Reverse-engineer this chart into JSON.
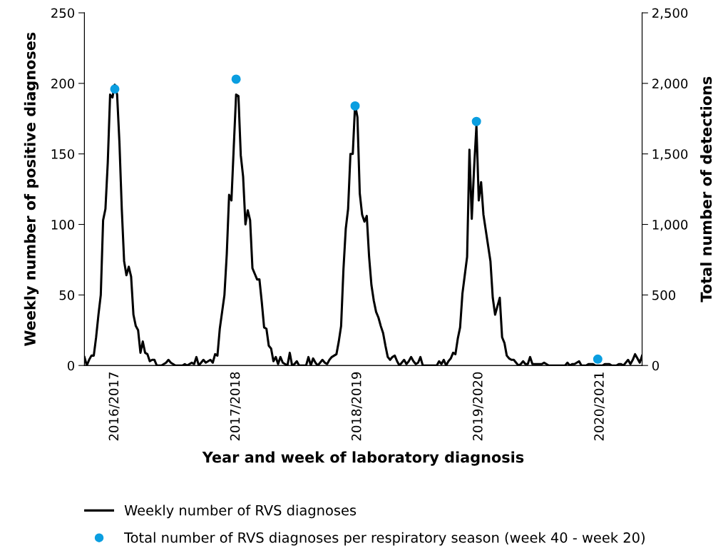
{
  "chart_data": {
    "type": "line",
    "xlabel": "Year and week of laboratory diagnosis",
    "ylabel": "Weekly number of positive diagnoses",
    "y2label": "Total number of detections",
    "categories": [
      null,
      null,
      null,
      null,
      null,
      null,
      null,
      null,
      null,
      null,
      null,
      null,
      null,
      "2016/2017",
      null,
      null,
      null,
      null,
      null,
      null,
      null,
      null,
      null,
      null,
      null,
      null,
      null,
      null,
      null,
      null,
      null,
      null,
      null,
      null,
      null,
      null,
      null,
      null,
      null,
      null,
      null,
      null,
      null,
      null,
      null,
      null,
      null,
      null,
      null,
      null,
      null,
      null,
      null,
      null,
      null,
      null,
      null,
      null,
      null,
      null,
      null,
      null,
      null,
      null,
      null,
      "2017/2018",
      null,
      null,
      null,
      null,
      null,
      null,
      null,
      null,
      null,
      null,
      null,
      null,
      null,
      null,
      null,
      null,
      null,
      null,
      null,
      null,
      null,
      null,
      null,
      null,
      null,
      null,
      null,
      null,
      null,
      null,
      null,
      null,
      null,
      null,
      null,
      null,
      null,
      null,
      null,
      null,
      null,
      null,
      null,
      null,
      null,
      null,
      null,
      null,
      null,
      null,
      null,
      "2018/2019",
      null,
      null,
      null,
      null,
      null,
      null,
      null,
      null,
      null,
      null,
      null,
      null,
      null,
      null,
      null,
      null,
      null,
      null,
      null,
      null,
      null,
      null,
      null,
      null,
      null,
      null,
      null,
      null,
      null,
      null,
      null,
      null,
      null,
      null,
      null,
      null,
      null,
      null,
      null,
      null,
      null,
      null,
      null,
      null,
      null,
      null,
      null,
      null,
      null,
      null,
      null,
      "2019/2020",
      null,
      null,
      null,
      null,
      null,
      null,
      null,
      null,
      null,
      null,
      null,
      null,
      null,
      null,
      null,
      null,
      null,
      null,
      null,
      null,
      null,
      null,
      null,
      null,
      null,
      null,
      null,
      null,
      null,
      null,
      null,
      null,
      null,
      null,
      null,
      null,
      null,
      null,
      null,
      null,
      null,
      null,
      null,
      null,
      null,
      null,
      null,
      null,
      null,
      null,
      null,
      "2020/2021",
      null,
      null,
      null,
      null,
      null,
      null,
      null,
      null,
      null,
      null,
      null,
      null,
      null,
      null,
      null,
      null,
      null,
      null
    ],
    "ylim": [
      0,
      250
    ],
    "yticks": [
      0,
      50,
      100,
      150,
      200,
      250
    ],
    "y2lim": [
      0,
      2500
    ],
    "y2ticks": [
      0,
      500,
      {
        "value": 1000,
        "label": "1,000"
      },
      {
        "value": 1500,
        "label": "1,500"
      },
      {
        "value": 2000,
        "label": "2,000"
      },
      {
        "value": 2500,
        "label": "2,500"
      }
    ],
    "grid": false,
    "legend": "bottom",
    "series": [
      {
        "name": "Weekly number of RVS diagnoses",
        "color": "#000000",
        "marker": "none",
        "values": [
          6,
          0,
          4,
          7,
          7,
          20,
          36,
          50,
          103,
          111,
          144,
          192,
          190,
          199,
          192,
          158,
          111,
          74,
          64,
          70,
          63,
          36,
          28,
          25,
          9,
          17,
          9,
          8,
          3,
          4,
          4,
          0,
          0,
          0,
          1,
          2,
          4,
          2,
          1,
          0,
          0,
          0,
          0,
          1,
          0,
          1,
          2,
          1,
          6,
          0,
          2,
          4,
          2,
          3,
          4,
          2,
          8,
          7,
          26,
          38,
          50,
          79,
          121,
          117,
          155,
          192,
          191,
          149,
          134,
          100,
          110,
          103,
          69,
          65,
          61,
          61,
          45,
          27,
          26,
          14,
          12,
          3,
          6,
          1,
          6,
          2,
          1,
          0,
          9,
          0,
          1,
          3,
          0,
          0,
          0,
          0,
          6,
          0,
          5,
          2,
          0,
          2,
          4,
          2,
          1,
          4,
          6,
          7,
          8,
          17,
          28,
          68,
          97,
          111,
          150,
          150,
          185,
          176,
          122,
          107,
          102,
          106,
          77,
          57,
          46,
          38,
          34,
          28,
          23,
          14,
          6,
          4,
          6,
          7,
          3,
          0,
          2,
          4,
          1,
          3,
          6,
          3,
          1,
          2,
          6,
          0,
          0,
          0,
          0,
          0,
          0,
          0,
          3,
          1,
          4,
          0,
          3,
          5,
          9,
          8,
          19,
          27,
          51,
          64,
          77,
          153,
          104,
          140,
          170,
          117,
          130,
          107,
          96,
          85,
          74,
          48,
          36,
          42,
          48,
          20,
          16,
          7,
          5,
          4,
          4,
          2,
          0,
          1,
          3,
          1,
          1,
          6,
          1,
          1,
          1,
          1,
          1,
          2,
          1,
          0,
          0,
          0,
          0,
          0,
          0,
          0,
          0,
          2,
          0,
          1,
          1,
          2,
          3,
          0,
          0,
          0,
          1,
          1,
          1,
          0,
          0,
          0,
          0,
          1,
          1,
          1,
          0,
          0,
          0,
          1,
          1,
          0,
          2,
          4,
          1,
          4,
          8,
          5,
          2,
          7
        ]
      },
      {
        "name": "Total number of RVS diagnoses per respiratory season (week 40 - week 20)",
        "type": "scatter",
        "axis": "y2",
        "color": "#0a9ee0",
        "marker": "circle",
        "values": [
          null,
          null,
          null,
          null,
          null,
          null,
          null,
          null,
          null,
          null,
          null,
          null,
          null,
          1960,
          null,
          null,
          null,
          null,
          null,
          null,
          null,
          null,
          null,
          null,
          null,
          null,
          null,
          null,
          null,
          null,
          null,
          null,
          null,
          null,
          null,
          null,
          null,
          null,
          null,
          null,
          null,
          null,
          null,
          null,
          null,
          null,
          null,
          null,
          null,
          null,
          null,
          null,
          null,
          null,
          null,
          null,
          null,
          null,
          null,
          null,
          null,
          null,
          null,
          null,
          null,
          2030,
          null,
          null,
          null,
          null,
          null,
          null,
          null,
          null,
          null,
          null,
          null,
          null,
          null,
          null,
          null,
          null,
          null,
          null,
          null,
          null,
          null,
          null,
          null,
          null,
          null,
          null,
          null,
          null,
          null,
          null,
          null,
          null,
          null,
          null,
          null,
          null,
          null,
          null,
          null,
          null,
          null,
          null,
          null,
          null,
          null,
          null,
          null,
          null,
          null,
          null,
          1840,
          null,
          null,
          null,
          null,
          null,
          null,
          null,
          null,
          null,
          null,
          null,
          null,
          null,
          null,
          null,
          null,
          null,
          null,
          null,
          null,
          null,
          null,
          null,
          null,
          null,
          null,
          null,
          null,
          null,
          null,
          null,
          null,
          null,
          null,
          null,
          null,
          null,
          null,
          null,
          null,
          null,
          null,
          null,
          null,
          null,
          null,
          null,
          null,
          null,
          null,
          null,
          1730,
          null,
          null,
          null,
          null,
          null,
          null,
          null,
          null,
          null,
          null,
          null,
          null,
          null,
          null,
          null,
          null,
          null,
          null,
          null,
          null,
          null,
          null,
          null,
          null,
          null,
          null,
          null,
          null,
          null,
          null,
          null,
          null,
          null,
          null,
          null,
          null,
          null,
          null,
          null,
          null,
          null,
          null,
          null,
          null,
          null,
          null,
          null,
          null,
          null,
          null,
          null,
          45,
          null,
          null,
          null,
          null,
          null,
          null,
          null,
          null,
          null,
          null,
          null,
          null,
          null,
          null,
          null,
          null,
          null,
          null,
          null
        ]
      }
    ]
  }
}
